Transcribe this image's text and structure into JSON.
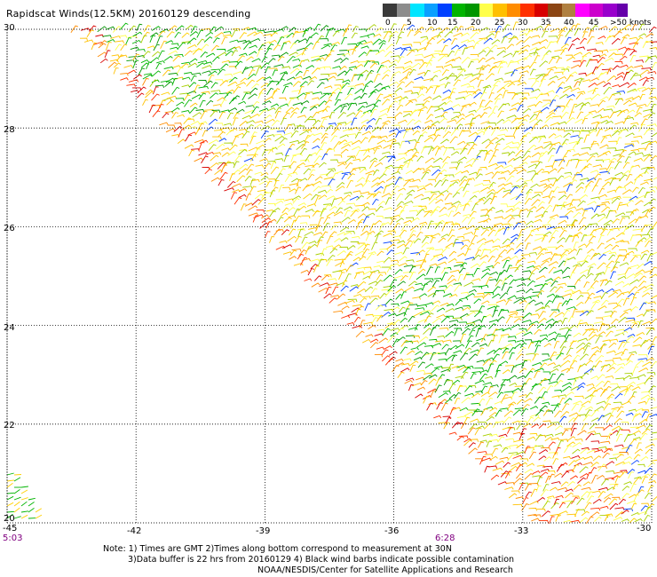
{
  "title": "Rapidscat Winds(12.5KM) 20160129 descending",
  "legend": {
    "colors": [
      "#3a3a3a",
      "#8c8c8c",
      "#00e5ff",
      "#0aa0ff",
      "#0040ff",
      "#00b400",
      "#009600",
      "#ffff4b",
      "#ffc000",
      "#ff8c00",
      "#ff3000",
      "#d80000",
      "#8b4513",
      "#b08040",
      "#ff00ff",
      "#cc00cc",
      "#9900cc",
      "#6600aa"
    ],
    "labels": [
      "0",
      "5",
      "10",
      "15",
      "20",
      "25",
      "30",
      "35",
      "40",
      "45",
      ">50 knots"
    ]
  },
  "axes": {
    "lat_labels": [
      "30",
      "28",
      "26",
      "24",
      "22",
      "20"
    ],
    "lon_labels": [
      "-45",
      "-42",
      "-39",
      "-36",
      "-33",
      "-30"
    ]
  },
  "time_labels": [
    "5:03",
    "6:28"
  ],
  "notes": [
    "Note: 1) Times are GMT 2)Times along bottom correspond to measurement at 30N",
    "3)Data buffer is 22 hrs from 20160129 4) Black wind barbs indicate possible contamination",
    "NOAA/NESDIS/Center for Satellite Applications and Research"
  ]
}
